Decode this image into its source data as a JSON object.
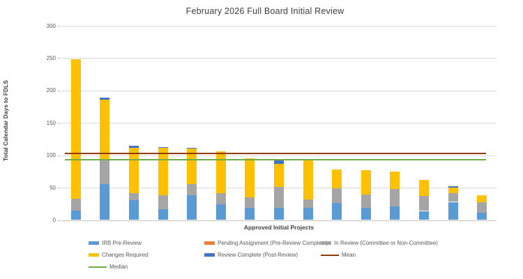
{
  "title": "February 2026 Full Board Initial Review",
  "chart_data": {
    "type": "bar",
    "stacked": true,
    "title": "February 2026 Full Board Initial Review",
    "xlabel": "Approved Initial Projects",
    "ylabel": "Total Calendar Days to FDLS",
    "ylim": [
      0,
      300
    ],
    "yticks": [
      0,
      50,
      100,
      150,
      200,
      250,
      300
    ],
    "x_tick_labels_visible": false,
    "grid": "horizontal",
    "legend_position": "bottom",
    "bar_count": 15,
    "series": [
      {
        "name": "IRB Pre-Review",
        "color": "#5B9BD5",
        "values": [
          15,
          55,
          31,
          17,
          38,
          24,
          19,
          19,
          19,
          26,
          19,
          21,
          14,
          28,
          11
        ]
      },
      {
        "name": "Pending Assignment (Pre-Review Complete)",
        "color": "#ED7D31",
        "values": [
          0,
          0,
          0,
          0,
          0,
          0,
          0,
          0,
          0,
          0,
          0,
          0,
          0,
          0,
          0
        ]
      },
      {
        "name": "In Review (Committee or Non-Committee)",
        "color": "#A5A5A5",
        "values": [
          18,
          37,
          10,
          21,
          18,
          17,
          16,
          32,
          13,
          23,
          20,
          27,
          23,
          14,
          16
        ]
      },
      {
        "name": "Changes Required",
        "color": "#FFC000",
        "values": [
          215,
          94,
          71,
          73,
          54,
          65,
          60,
          36,
          60,
          29,
          38,
          27,
          25,
          8,
          11
        ]
      },
      {
        "name": "Review Complete (Post-Review)",
        "color": "#4472C4",
        "values": [
          0,
          3,
          3,
          2,
          2,
          0,
          0,
          7,
          0,
          0,
          0,
          0,
          0,
          2,
          0
        ]
      }
    ],
    "bar_totals": [
      248,
      189,
      115,
      113,
      112,
      106,
      95,
      94,
      92,
      78,
      77,
      75,
      62,
      52,
      38
    ],
    "lines": [
      {
        "name": "Mean",
        "color": "#8E3A0B",
        "value": 103
      },
      {
        "name": "Median",
        "color": "#70AD47",
        "value": 93
      }
    ]
  }
}
